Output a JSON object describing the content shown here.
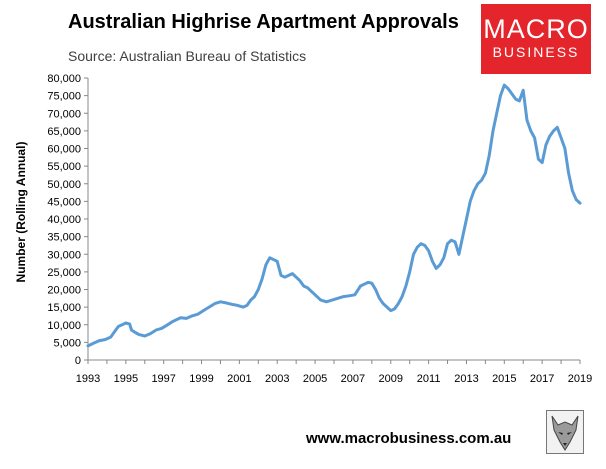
{
  "header": {
    "title": "Australian Highrise Apartment Approvals",
    "subtitle": "Source: Australian Bureau of Statistics"
  },
  "logo": {
    "line1": "MACRO",
    "line2": "BUSINESS",
    "background": "#e4262c"
  },
  "footer": {
    "url": "www.macrobusiness.com.au",
    "icon": "wolf-icon"
  },
  "chart_data": {
    "type": "line",
    "title": "Australian Highrise Apartment Approvals",
    "subtitle": "Source: Australian Bureau of Statistics",
    "xlabel": "",
    "ylabel": "Number (Rolling Annual)",
    "xlim": [
      1993,
      2019
    ],
    "ylim": [
      0,
      80000
    ],
    "x_ticks": [
      "1993",
      "1995",
      "1997",
      "1999",
      "2001",
      "2003",
      "2005",
      "2007",
      "2009",
      "2011",
      "2013",
      "2015",
      "2017",
      "2019"
    ],
    "y_ticks": [
      "0",
      "5,000",
      "10,000",
      "15,000",
      "20,000",
      "25,000",
      "30,000",
      "35,000",
      "40,000",
      "45,000",
      "50,000",
      "55,000",
      "60,000",
      "65,000",
      "70,000",
      "75,000",
      "80,000"
    ],
    "grid": false,
    "legend": "none",
    "line_color": "#5b9bd5",
    "series": [
      {
        "x": [
          1993.0,
          1993.3,
          1993.6,
          1993.9,
          1994.2,
          1994.4,
          1994.6,
          1994.8,
          1995.0,
          1995.2,
          1995.3,
          1995.5,
          1995.7,
          1996.0,
          1996.3,
          1996.6,
          1996.9,
          1997.2,
          1997.5,
          1997.7,
          1997.9,
          1998.2,
          1998.5,
          1998.8,
          1999.1,
          1999.4,
          1999.7,
          2000.0,
          2000.3,
          2000.6,
          2000.9,
          2001.2,
          2001.4,
          2001.6,
          2001.8,
          2002.0,
          2002.2,
          2002.4,
          2002.6,
          2002.8,
          2003.0,
          2003.2,
          2003.4,
          2003.6,
          2003.8,
          2004.0,
          2004.2,
          2004.4,
          2004.6,
          2004.8,
          2005.0,
          2005.3,
          2005.6,
          2005.9,
          2006.2,
          2006.5,
          2006.8,
          2007.1,
          2007.4,
          2007.6,
          2007.8,
          2008.0,
          2008.2,
          2008.4,
          2008.6,
          2008.8,
          2009.0,
          2009.2,
          2009.4,
          2009.6,
          2009.8,
          2010.0,
          2010.2,
          2010.4,
          2010.6,
          2010.8,
          2011.0,
          2011.2,
          2011.4,
          2011.6,
          2011.8,
          2012.0,
          2012.2,
          2012.4,
          2012.6,
          2012.8,
          2013.0,
          2013.2,
          2013.4,
          2013.6,
          2013.8,
          2014.0,
          2014.2,
          2014.4,
          2014.6,
          2014.8,
          2015.0,
          2015.2,
          2015.4,
          2015.6,
          2015.8,
          2016.0,
          2016.2,
          2016.4,
          2016.6,
          2016.8,
          2017.0,
          2017.2,
          2017.4,
          2017.6,
          2017.8,
          2018.0,
          2018.2,
          2018.4,
          2018.6,
          2018.8,
          2019.0
        ],
        "values": [
          4000,
          4800,
          5500,
          5800,
          6500,
          8000,
          9500,
          10000,
          10500,
          10200,
          8500,
          7800,
          7200,
          6800,
          7500,
          8500,
          9000,
          10000,
          11000,
          11500,
          12000,
          11800,
          12500,
          13000,
          14000,
          15000,
          16000,
          16500,
          16200,
          15800,
          15500,
          15000,
          15500,
          17000,
          18000,
          20000,
          23000,
          27000,
          29000,
          28500,
          28000,
          24000,
          23500,
          24000,
          24500,
          23500,
          22500,
          21000,
          20500,
          19500,
          18500,
          17000,
          16500,
          17000,
          17500,
          18000,
          18200,
          18500,
          21000,
          21500,
          22000,
          21800,
          20000,
          17500,
          16000,
          15000,
          14000,
          14500,
          16000,
          18000,
          21000,
          25000,
          30000,
          32000,
          33000,
          32500,
          31000,
          28000,
          26000,
          27000,
          29000,
          33000,
          34000,
          33500,
          30000,
          35000,
          40000,
          45000,
          48000,
          50000,
          51000,
          53000,
          58000,
          65000,
          70000,
          75000,
          78000,
          77000,
          75500,
          74000,
          73500,
          76500,
          68000,
          65000,
          63000,
          57000,
          56000,
          61000,
          63500,
          65000,
          66000,
          63000,
          60000,
          53000,
          48000,
          45500,
          44500
        ]
      }
    ]
  }
}
